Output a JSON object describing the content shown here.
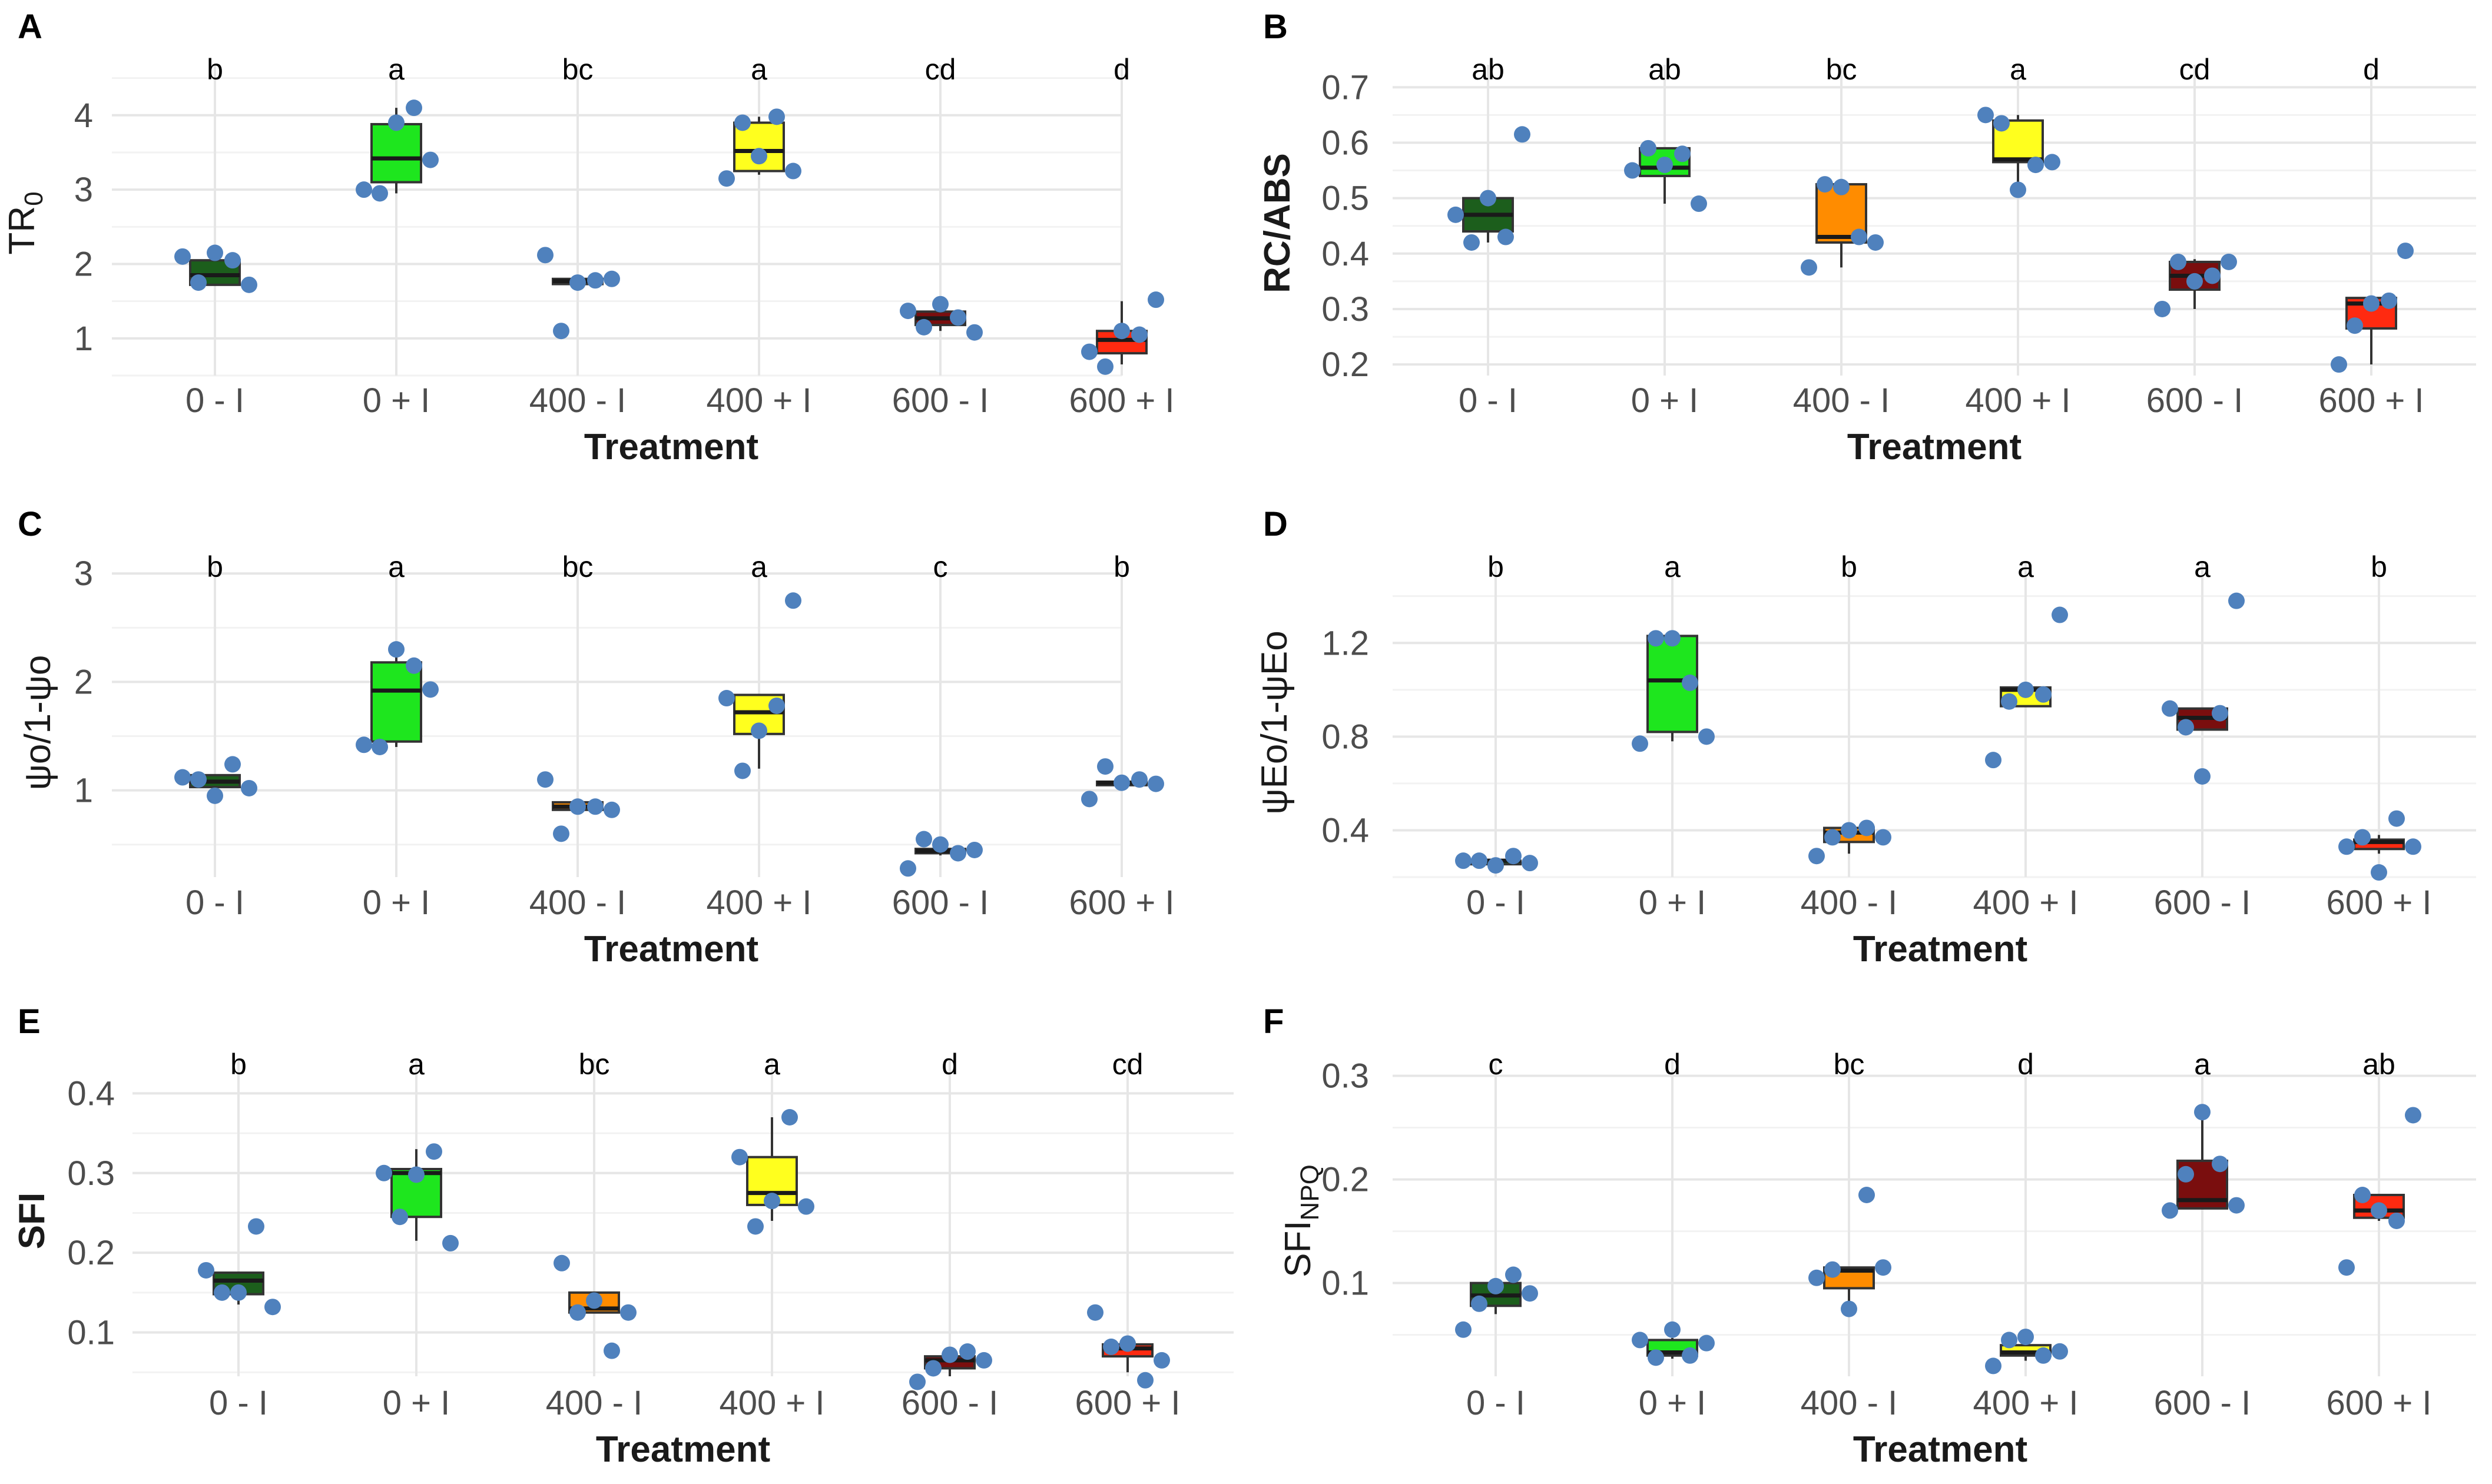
{
  "colors": {
    "0 - I": "#1c5e1c",
    "0 + I": "#1ee61e",
    "400 - I": "#ff8c00",
    "400 + I": "#ffff1e",
    "600 - I": "#7a0e0e",
    "600 + I": "#ff2a10",
    "points": "#4f81bd"
  },
  "chart_data": [
    {
      "panel": "A",
      "type": "boxplot",
      "ylabel": "TR",
      "ylabel_sub": "0",
      "xlabel": "Treatment",
      "categories": [
        "0 - I",
        "0 + I",
        "400 - I",
        "400 + I",
        "600 - I",
        "600 + I"
      ],
      "ylim": [
        0.5,
        4.6
      ],
      "yticks": [
        "1",
        "2",
        "3",
        "4"
      ],
      "letters": [
        "b",
        "a",
        "bc",
        "a",
        "cd",
        "d"
      ],
      "boxes": [
        {
          "q1": 1.72,
          "median": 1.85,
          "q3": 2.05,
          "min": 1.72,
          "max": 2.1
        },
        {
          "q1": 3.1,
          "median": 3.42,
          "q3": 3.88,
          "min": 2.95,
          "max": 4.1
        },
        {
          "q1": 1.73,
          "median": 1.77,
          "q3": 1.8,
          "min": 1.73,
          "max": 1.8
        },
        {
          "q1": 3.25,
          "median": 3.52,
          "q3": 3.9,
          "min": 3.2,
          "max": 3.98
        },
        {
          "q1": 1.18,
          "median": 1.27,
          "q3": 1.36,
          "min": 1.1,
          "max": 1.46
        },
        {
          "q1": 0.8,
          "median": 0.98,
          "q3": 1.1,
          "min": 0.65,
          "max": 1.5
        }
      ],
      "points": [
        [
          2.1,
          1.75,
          2.15,
          2.05,
          1.72
        ],
        [
          3.0,
          2.95,
          3.9,
          4.1,
          3.4
        ],
        [
          2.12,
          1.1,
          1.75,
          1.78,
          1.8
        ],
        [
          3.15,
          3.9,
          3.45,
          3.98,
          3.25
        ],
        [
          1.37,
          1.15,
          1.46,
          1.28,
          1.08
        ],
        [
          0.82,
          0.62,
          1.1,
          1.05,
          1.52
        ]
      ]
    },
    {
      "panel": "B",
      "type": "boxplot",
      "ylabel": "RC/ABS",
      "xlabel": "Treatment",
      "categories": [
        "0 - I",
        "0 + I",
        "400 - I",
        "400 + I",
        "600 - I",
        "600 + I"
      ],
      "ylim": [
        0.18,
        0.73
      ],
      "yticks": [
        "0.2",
        "0.3",
        "0.4",
        "0.5",
        "0.6",
        "0.7"
      ],
      "letters": [
        "ab",
        "ab",
        "bc",
        "a",
        "cd",
        "d"
      ],
      "boxes": [
        {
          "q1": 0.44,
          "median": 0.47,
          "q3": 0.5,
          "min": 0.42,
          "max": 0.5
        },
        {
          "q1": 0.54,
          "median": 0.555,
          "q3": 0.59,
          "min": 0.49,
          "max": 0.59
        },
        {
          "q1": 0.42,
          "median": 0.43,
          "q3": 0.525,
          "min": 0.375,
          "max": 0.525
        },
        {
          "q1": 0.565,
          "median": 0.57,
          "q3": 0.64,
          "min": 0.515,
          "max": 0.65
        },
        {
          "q1": 0.335,
          "median": 0.36,
          "q3": 0.385,
          "min": 0.3,
          "max": 0.39
        },
        {
          "q1": 0.265,
          "median": 0.31,
          "q3": 0.32,
          "min": 0.2,
          "max": 0.32
        }
      ],
      "points": [
        [
          0.47,
          0.42,
          0.5,
          0.43,
          0.615
        ],
        [
          0.55,
          0.59,
          0.56,
          0.58,
          0.49
        ],
        [
          0.375,
          0.525,
          0.52,
          0.43,
          0.42
        ],
        [
          0.65,
          0.635,
          0.515,
          0.56,
          0.565
        ],
        [
          0.3,
          0.385,
          0.35,
          0.36,
          0.385
        ],
        [
          0.2,
          0.27,
          0.31,
          0.315,
          0.405
        ]
      ]
    },
    {
      "panel": "C",
      "type": "boxplot",
      "ylabel": "ψo/1-ψo",
      "xlabel": "Treatment",
      "categories": [
        "0 - I",
        "0 + I",
        "400 - I",
        "400 + I",
        "600 - I",
        "600 + I"
      ],
      "ylim": [
        0.2,
        3.05
      ],
      "yticks": [
        "1",
        "2",
        "3"
      ],
      "letters": [
        "b",
        "a",
        "bc",
        "a",
        "c",
        "b"
      ],
      "boxes": [
        {
          "q1": 1.03,
          "median": 1.08,
          "q3": 1.14,
          "min": 0.95,
          "max": 1.14
        },
        {
          "q1": 1.45,
          "median": 1.92,
          "q3": 2.18,
          "min": 1.4,
          "max": 2.3
        },
        {
          "q1": 0.82,
          "median": 0.85,
          "q3": 0.89,
          "min": 0.8,
          "max": 0.89
        },
        {
          "q1": 1.52,
          "median": 1.72,
          "q3": 1.88,
          "min": 1.2,
          "max": 1.88
        },
        {
          "q1": 0.42,
          "median": 0.44,
          "q3": 0.46,
          "min": 0.4,
          "max": 0.46
        },
        {
          "q1": 1.06,
          "median": 1.07,
          "q3": 1.08,
          "min": 1.05,
          "max": 1.09
        }
      ],
      "points": [
        [
          1.12,
          1.1,
          0.95,
          1.24,
          1.02
        ],
        [
          1.42,
          1.4,
          2.3,
          2.15,
          1.93
        ],
        [
          1.1,
          0.6,
          0.85,
          0.85,
          0.82
        ],
        [
          1.85,
          1.18,
          1.55,
          1.78,
          2.75
        ],
        [
          0.28,
          0.55,
          0.5,
          0.42,
          0.45
        ],
        [
          0.92,
          1.22,
          1.07,
          1.1,
          1.06
        ]
      ]
    },
    {
      "panel": "D",
      "type": "boxplot",
      "ylabel": "ψEo/1-ψEo",
      "xlabel": "Treatment",
      "categories": [
        "0 - I",
        "0 + I",
        "400 - I",
        "400 + I",
        "600 - I",
        "600 + I"
      ],
      "ylim": [
        0.2,
        1.52
      ],
      "yticks": [
        "0.4",
        "0.8",
        "1.2"
      ],
      "letters": [
        "b",
        "a",
        "b",
        "a",
        "a",
        "b"
      ],
      "boxes": [
        {
          "q1": 0.26,
          "median": 0.27,
          "q3": 0.27,
          "min": 0.25,
          "max": 0.28
        },
        {
          "q1": 0.82,
          "median": 1.04,
          "q3": 1.23,
          "min": 0.78,
          "max": 1.23
        },
        {
          "q1": 0.35,
          "median": 0.39,
          "q3": 0.41,
          "min": 0.3,
          "max": 0.41
        },
        {
          "q1": 0.93,
          "median": 1.0,
          "q3": 1.01,
          "min": 0.93,
          "max": 1.01
        },
        {
          "q1": 0.83,
          "median": 0.88,
          "q3": 0.92,
          "min": 0.83,
          "max": 0.92
        },
        {
          "q1": 0.32,
          "median": 0.35,
          "q3": 0.36,
          "min": 0.3,
          "max": 0.38
        }
      ],
      "points": [
        [
          0.27,
          0.27,
          0.25,
          0.29,
          0.26
        ],
        [
          0.77,
          1.22,
          1.22,
          1.03,
          0.8
        ],
        [
          0.29,
          0.37,
          0.4,
          0.41,
          0.37
        ],
        [
          0.7,
          0.95,
          1.0,
          0.98,
          1.32
        ],
        [
          0.92,
          0.84,
          0.63,
          0.9,
          1.38
        ],
        [
          0.33,
          0.37,
          0.22,
          0.45,
          0.33
        ]
      ]
    },
    {
      "panel": "E",
      "type": "boxplot",
      "ylabel": "SFI",
      "xlabel": "Treatment",
      "categories": [
        "0 - I",
        "0 + I",
        "400 - I",
        "400 + I",
        "600 - I",
        "600 + I"
      ],
      "ylim": [
        0.045,
        0.435
      ],
      "yticks": [
        "0.1",
        "0.2",
        "0.3",
        "0.4"
      ],
      "letters": [
        "b",
        "a",
        "bc",
        "a",
        "d",
        "cd"
      ],
      "boxes": [
        {
          "q1": 0.148,
          "median": 0.165,
          "q3": 0.175,
          "min": 0.135,
          "max": 0.175
        },
        {
          "q1": 0.245,
          "median": 0.3,
          "q3": 0.305,
          "min": 0.215,
          "max": 0.33
        },
        {
          "q1": 0.125,
          "median": 0.13,
          "q3": 0.15,
          "min": 0.125,
          "max": 0.15
        },
        {
          "q1": 0.26,
          "median": 0.275,
          "q3": 0.32,
          "min": 0.24,
          "max": 0.37
        },
        {
          "q1": 0.055,
          "median": 0.065,
          "q3": 0.07,
          "min": 0.045,
          "max": 0.07
        },
        {
          "q1": 0.07,
          "median": 0.08,
          "q3": 0.085,
          "min": 0.05,
          "max": 0.085
        }
      ],
      "points": [
        [
          0.178,
          0.15,
          0.15,
          0.233,
          0.132
        ],
        [
          0.3,
          0.245,
          0.298,
          0.327,
          0.212
        ],
        [
          0.187,
          0.125,
          0.14,
          0.077,
          0.125
        ],
        [
          0.32,
          0.233,
          0.265,
          0.37,
          0.258
        ],
        [
          0.038,
          0.055,
          0.072,
          0.076,
          0.065
        ],
        [
          0.125,
          0.082,
          0.086,
          0.04,
          0.065
        ]
      ]
    },
    {
      "panel": "F",
      "type": "boxplot",
      "ylabel": "SFI",
      "ylabel_sub": "NPQ",
      "xlabel": "Treatment",
      "categories": [
        "0 - I",
        "0 + I",
        "400 - I",
        "400 + I",
        "600 - I",
        "600 + I"
      ],
      "ylim": [
        0.01,
        0.31
      ],
      "yticks": [
        "0.1",
        "0.2",
        "0.3"
      ],
      "letters": [
        "c",
        "d",
        "bc",
        "d",
        "a",
        "ab"
      ],
      "boxes": [
        {
          "q1": 0.078,
          "median": 0.088,
          "q3": 0.1,
          "min": 0.07,
          "max": 0.1
        },
        {
          "q1": 0.03,
          "median": 0.033,
          "q3": 0.045,
          "min": 0.027,
          "max": 0.047
        },
        {
          "q1": 0.095,
          "median": 0.112,
          "q3": 0.115,
          "min": 0.08,
          "max": 0.115
        },
        {
          "q1": 0.03,
          "median": 0.033,
          "q3": 0.04,
          "min": 0.025,
          "max": 0.045
        },
        {
          "q1": 0.172,
          "median": 0.18,
          "q3": 0.218,
          "min": 0.172,
          "max": 0.265
        },
        {
          "q1": 0.163,
          "median": 0.17,
          "q3": 0.185,
          "min": 0.16,
          "max": 0.185
        }
      ],
      "points": [
        [
          0.055,
          0.08,
          0.097,
          0.108,
          0.09
        ],
        [
          0.045,
          0.028,
          0.055,
          0.03,
          0.042
        ],
        [
          0.105,
          0.113,
          0.075,
          0.185,
          0.115
        ],
        [
          0.02,
          0.045,
          0.048,
          0.03,
          0.034
        ],
        [
          0.17,
          0.205,
          0.265,
          0.215,
          0.175
        ],
        [
          0.115,
          0.185,
          0.17,
          0.16,
          0.262
        ]
      ]
    }
  ]
}
